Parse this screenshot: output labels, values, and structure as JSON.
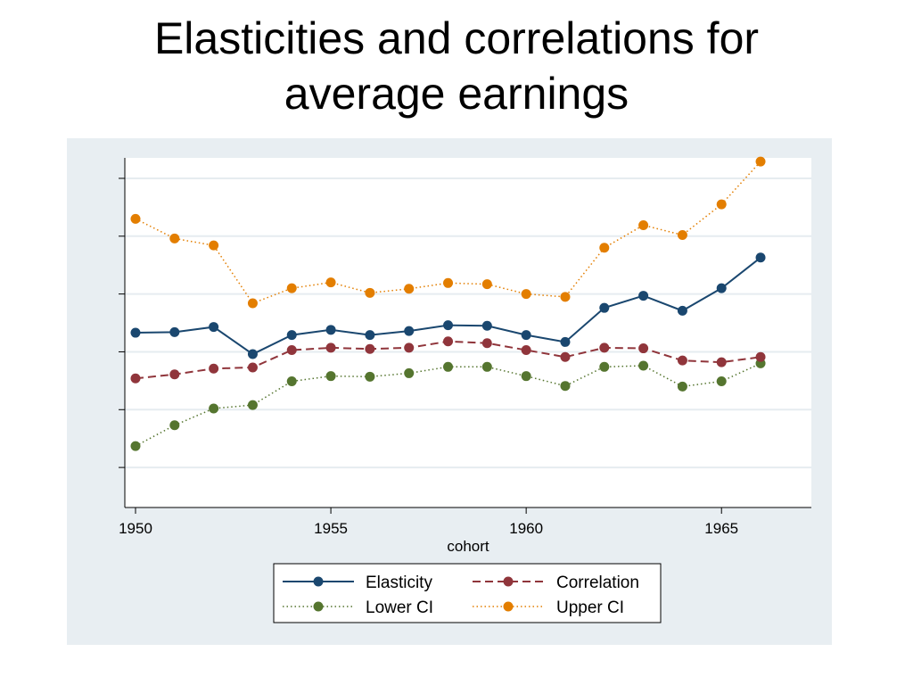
{
  "slide": {
    "title_line1": "Elasticities and correlations for",
    "title_line2": "average earnings"
  },
  "colors": {
    "panel_bg": "#e8eef2",
    "plot_bg": "#ffffff",
    "grid": "#e6ecf0",
    "elasticity": "#1a476f",
    "correlation": "#90353b",
    "lower_ci": "#55752f",
    "upper_ci": "#e37e00"
  },
  "chart_data": {
    "type": "line",
    "xlabel": "cohort",
    "ylabel": "",
    "x": [
      1950,
      1951,
      1952,
      1953,
      1954,
      1955,
      1956,
      1957,
      1958,
      1959,
      1960,
      1961,
      1962,
      1963,
      1964,
      1965,
      1966
    ],
    "xticks": [
      1950,
      1955,
      1960,
      1965
    ],
    "xlim": [
      1950,
      1967.3
    ],
    "ylim": [
      -0.06,
      0.52
    ],
    "yticks": [
      0.0,
      0.1,
      0.2,
      0.3,
      0.4,
      0.5
    ],
    "ytick_labels_visible": false,
    "grid": true,
    "legend_position": "bottom",
    "series": [
      {
        "name": "Elasticity",
        "style": "solid",
        "color": "#1a476f",
        "values": [
          0.233,
          0.234,
          0.243,
          0.196,
          0.229,
          0.238,
          0.229,
          0.236,
          0.246,
          0.245,
          0.229,
          0.217,
          0.276,
          0.297,
          0.271,
          0.31,
          0.363
        ]
      },
      {
        "name": "Correlation",
        "style": "dash",
        "color": "#90353b",
        "values": [
          0.154,
          0.161,
          0.171,
          0.173,
          0.203,
          0.207,
          0.205,
          0.207,
          0.218,
          0.215,
          0.203,
          0.191,
          0.207,
          0.206,
          0.185,
          0.182,
          0.191
        ]
      },
      {
        "name": "Lower CI",
        "style": "dot",
        "color": "#55752f",
        "values": [
          0.037,
          0.073,
          0.102,
          0.108,
          0.149,
          0.158,
          0.157,
          0.163,
          0.174,
          0.174,
          0.158,
          0.141,
          0.174,
          0.176,
          0.14,
          0.149,
          0.18
        ]
      },
      {
        "name": "Upper CI",
        "style": "dot",
        "color": "#e37e00",
        "values": [
          0.43,
          0.396,
          0.384,
          0.284,
          0.31,
          0.32,
          0.302,
          0.309,
          0.319,
          0.317,
          0.3,
          0.295,
          0.38,
          0.419,
          0.402,
          0.455,
          0.529
        ]
      }
    ]
  }
}
